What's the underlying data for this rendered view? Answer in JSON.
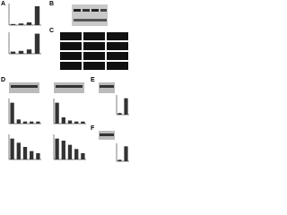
{
  "panels": [
    "A",
    "B",
    "C",
    "D",
    "E",
    "F"
  ],
  "chart_data": [
    {
      "type": "bar",
      "values": [
        0.2,
        0.3,
        0.5,
        3.5
      ],
      "ylim": [
        0,
        4
      ],
      "color": "#333333"
    },
    {
      "type": "bar",
      "values": [
        0.3,
        0.4,
        0.6,
        2.8
      ],
      "ylim": [
        0,
        3
      ],
      "color": "#333333"
    },
    {
      "type": "bar",
      "values": [
        1,
        0.2,
        0.1,
        0.1,
        0.1
      ],
      "ylim": [
        0,
        1.2
      ],
      "color": "#333333"
    },
    {
      "type": "bar",
      "values": [
        1,
        0.3,
        0.15,
        0.1,
        0.1
      ],
      "ylim": [
        0,
        1.2
      ],
      "color": "#333333"
    },
    {
      "type": "bar",
      "values": [
        1,
        0.8,
        0.6,
        0.4,
        0.3
      ],
      "ylim": [
        0,
        1.2
      ],
      "color": "#333333"
    },
    {
      "type": "bar",
      "values": [
        1,
        0.9,
        0.7,
        0.5,
        0.3
      ],
      "ylim": [
        0,
        1.2
      ],
      "color": "#333333"
    },
    {
      "type": "bar",
      "values": [
        0.1,
        1
      ],
      "ylim": [
        0,
        1.2
      ],
      "color": "#333333"
    },
    {
      "type": "bar",
      "values": [
        0.1,
        1
      ],
      "ylim": [
        0,
        1.2
      ],
      "color": "#333333"
    }
  ]
}
